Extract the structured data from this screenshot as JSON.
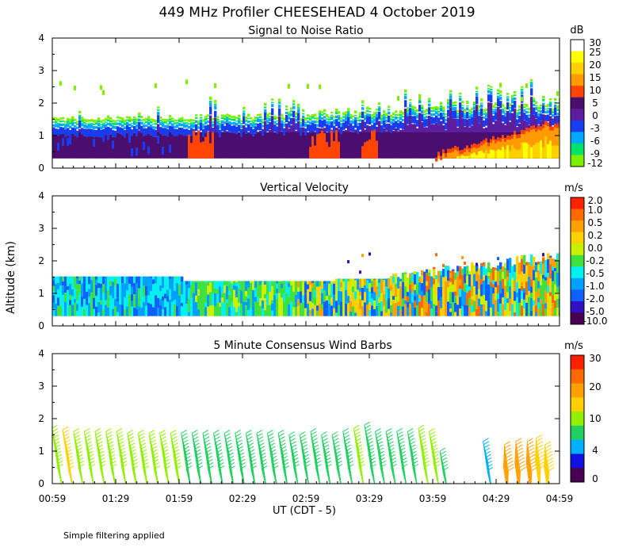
{
  "figure": {
    "title": "449 MHz Profiler CHEESEHEAD  4 October 2019",
    "ylabel": "Altitude (km)",
    "xlabel": "UT  (CDT - 5)",
    "footnote": "Simple filtering applied"
  },
  "chart_data": [
    {
      "type": "heatmap",
      "title": "Signal to Noise Ratio",
      "xlabel": "UT  (CDT - 5)",
      "ylabel": "Altitude (km)",
      "x_ticks": [
        "00:59",
        "01:29",
        "01:59",
        "02:29",
        "02:59",
        "03:29",
        "03:59",
        "04:29",
        "04:59"
      ],
      "y_ticks": [
        "0",
        "1",
        "2",
        "3",
        "4"
      ],
      "ylim": [
        0,
        4
      ],
      "colorbar": {
        "unit": "dB",
        "labels": [
          "30",
          "25",
          "20",
          "15",
          "10",
          "5",
          "0",
          "-3",
          "-6",
          "-9",
          "-12"
        ],
        "colors": [
          "#ffffff",
          "#ffff00",
          "#ffd000",
          "#ff9a00",
          "#ff4500",
          "#4a0f6e",
          "#5a1e9e",
          "#1a3cf0",
          "#00a8ff",
          "#00e26a",
          "#7cf000"
        ]
      },
      "description": "Top of echo layer rises from about 1.5 km at 00:59 to about 2.2 km at 04:59; strongest returns below 1 km after 03:59"
    },
    {
      "type": "heatmap",
      "title": "Vertical Velocity",
      "xlabel": "UT  (CDT - 5)",
      "ylabel": "Altitude (km)",
      "x_ticks": [
        "00:59",
        "01:29",
        "01:59",
        "02:29",
        "02:59",
        "03:29",
        "03:59",
        "04:29",
        "04:59"
      ],
      "y_ticks": [
        "0",
        "1",
        "2",
        "3",
        "4"
      ],
      "ylim": [
        0,
        4
      ],
      "colorbar": {
        "unit": "m/s",
        "labels": [
          "2.0",
          "1.0",
          "0.5",
          "0.2",
          "0.0",
          "-0.2",
          "-0.5",
          "-1.0",
          "-2.0",
          "-5.0",
          "-10.0"
        ],
        "colors": [
          "#ff2000",
          "#ff6a00",
          "#ffa000",
          "#ffd000",
          "#c8f000",
          "#40e040",
          "#00f0f0",
          "#00a0ff",
          "#1060ff",
          "#3010c0",
          "#4a0050"
        ]
      },
      "description": "Data from 0.3 km to about 1.5 km, extending up to 2.2 km after 03:59"
    },
    {
      "type": "scatter",
      "title": "5 Minute Consensus Wind Barbs",
      "xlabel": "UT  (CDT - 5)",
      "ylabel": "Altitude (km)",
      "x_ticks": [
        "00:59",
        "01:29",
        "01:59",
        "02:29",
        "02:59",
        "03:29",
        "03:59",
        "04:29",
        "04:59"
      ],
      "y_ticks": [
        "0",
        "1",
        "2",
        "3",
        "4"
      ],
      "ylim": [
        0,
        4
      ],
      "colorbar": {
        "unit": "m/s",
        "labels": [
          "30",
          "20",
          "10",
          "4",
          "0"
        ],
        "colors": [
          "#ff2000",
          "#ff6a00",
          "#ffa000",
          "#ffd000",
          "#90f000",
          "#20d060",
          "#00b0ff",
          "#1010e0",
          "#4a0050"
        ]
      },
      "barb_columns_start_hour": [
        0.98,
        1.065,
        1.15,
        1.235,
        1.32,
        1.405,
        1.49,
        1.575,
        1.66,
        1.745,
        1.83,
        1.915,
        2.0,
        2.085,
        2.17,
        2.255,
        2.34,
        2.425,
        2.51,
        2.595,
        2.68,
        2.765,
        2.85,
        2.935,
        3.02,
        3.105,
        3.19,
        3.275,
        3.36,
        3.445,
        3.53,
        3.615,
        3.7,
        3.785,
        3.87,
        3.955,
        4.04,
        4.38,
        4.55,
        4.64,
        4.73,
        4.8,
        4.87
      ],
      "barb_columns_top_km": [
        1.7,
        1.65,
        1.6,
        1.6,
        1.6,
        1.6,
        1.6,
        1.55,
        1.55,
        1.55,
        1.55,
        1.55,
        1.55,
        1.55,
        1.55,
        1.55,
        1.55,
        1.55,
        1.55,
        1.55,
        1.55,
        1.55,
        1.5,
        1.5,
        1.6,
        1.5,
        1.5,
        1.6,
        1.7,
        1.8,
        1.6,
        1.6,
        1.6,
        1.6,
        1.7,
        1.6,
        1.0,
        1.3,
        1.2,
        1.3,
        1.3,
        1.4,
        1.2
      ],
      "barb_columns_speed_ms": [
        12,
        13,
        12,
        10,
        10,
        11,
        10,
        10,
        10,
        9,
        9,
        9,
        8,
        8,
        8,
        8,
        8,
        8,
        8,
        8,
        8,
        8,
        8,
        8,
        8,
        8,
        8,
        8,
        9,
        8,
        8,
        8,
        8,
        8,
        10,
        9,
        7,
        4,
        18,
        18,
        18,
        16,
        16
      ]
    }
  ]
}
